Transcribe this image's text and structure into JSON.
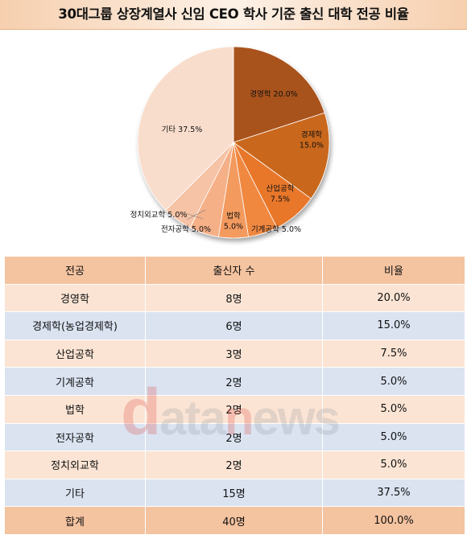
{
  "title": "30대그룹 상장계열사 신임 CEO 학사 기준 출신 대학 전공 비율",
  "chart_data": {
    "type": "pie",
    "title": "",
    "slices": [
      {
        "label": "경영학",
        "value": 20.0,
        "display": "경영학 20.0%",
        "color": "#a9521f"
      },
      {
        "label": "경제학",
        "value": 15.0,
        "display": "경제학\n15.0%",
        "color": "#c9671f"
      },
      {
        "label": "산업공학",
        "value": 7.5,
        "display": "산업공학\n7.5%",
        "color": "#e8772a"
      },
      {
        "label": "기계공학",
        "value": 5.0,
        "display": "기계공학 5.0%",
        "color": "#f0883f"
      },
      {
        "label": "법학",
        "value": 5.0,
        "display": "법학\n5.0%",
        "color": "#f39a5e"
      },
      {
        "label": "전자공학",
        "value": 5.0,
        "display": "전자공학 5.0%",
        "color": "#f5b088"
      },
      {
        "label": "정치외교학",
        "value": 5.0,
        "display": "정치외교학 5.0%",
        "color": "#f6c3a6"
      },
      {
        "label": "기타",
        "value": 37.5,
        "display": "기타 37.5%",
        "color": "#f9ddcc"
      }
    ]
  },
  "table": {
    "headers": [
      "전공",
      "출신자 수",
      "비율"
    ],
    "rows": [
      [
        "경영학",
        "8명",
        "20.0%"
      ],
      [
        "경제학(농업경제학)",
        "6명",
        "15.0%"
      ],
      [
        "산업공학",
        "3명",
        "7.5%"
      ],
      [
        "기계공학",
        "2명",
        "5.0%"
      ],
      [
        "법학",
        "2명",
        "5.0%"
      ],
      [
        "전자공학",
        "2명",
        "5.0%"
      ],
      [
        "정치외교학",
        "2명",
        "5.0%"
      ],
      [
        "기타",
        "15명",
        "37.5%"
      ]
    ],
    "total": [
      "합계",
      "40명",
      "100.0%"
    ]
  },
  "watermark": {
    "d": "d",
    "ata": "ata",
    "n": "n",
    "ews": "ews"
  }
}
